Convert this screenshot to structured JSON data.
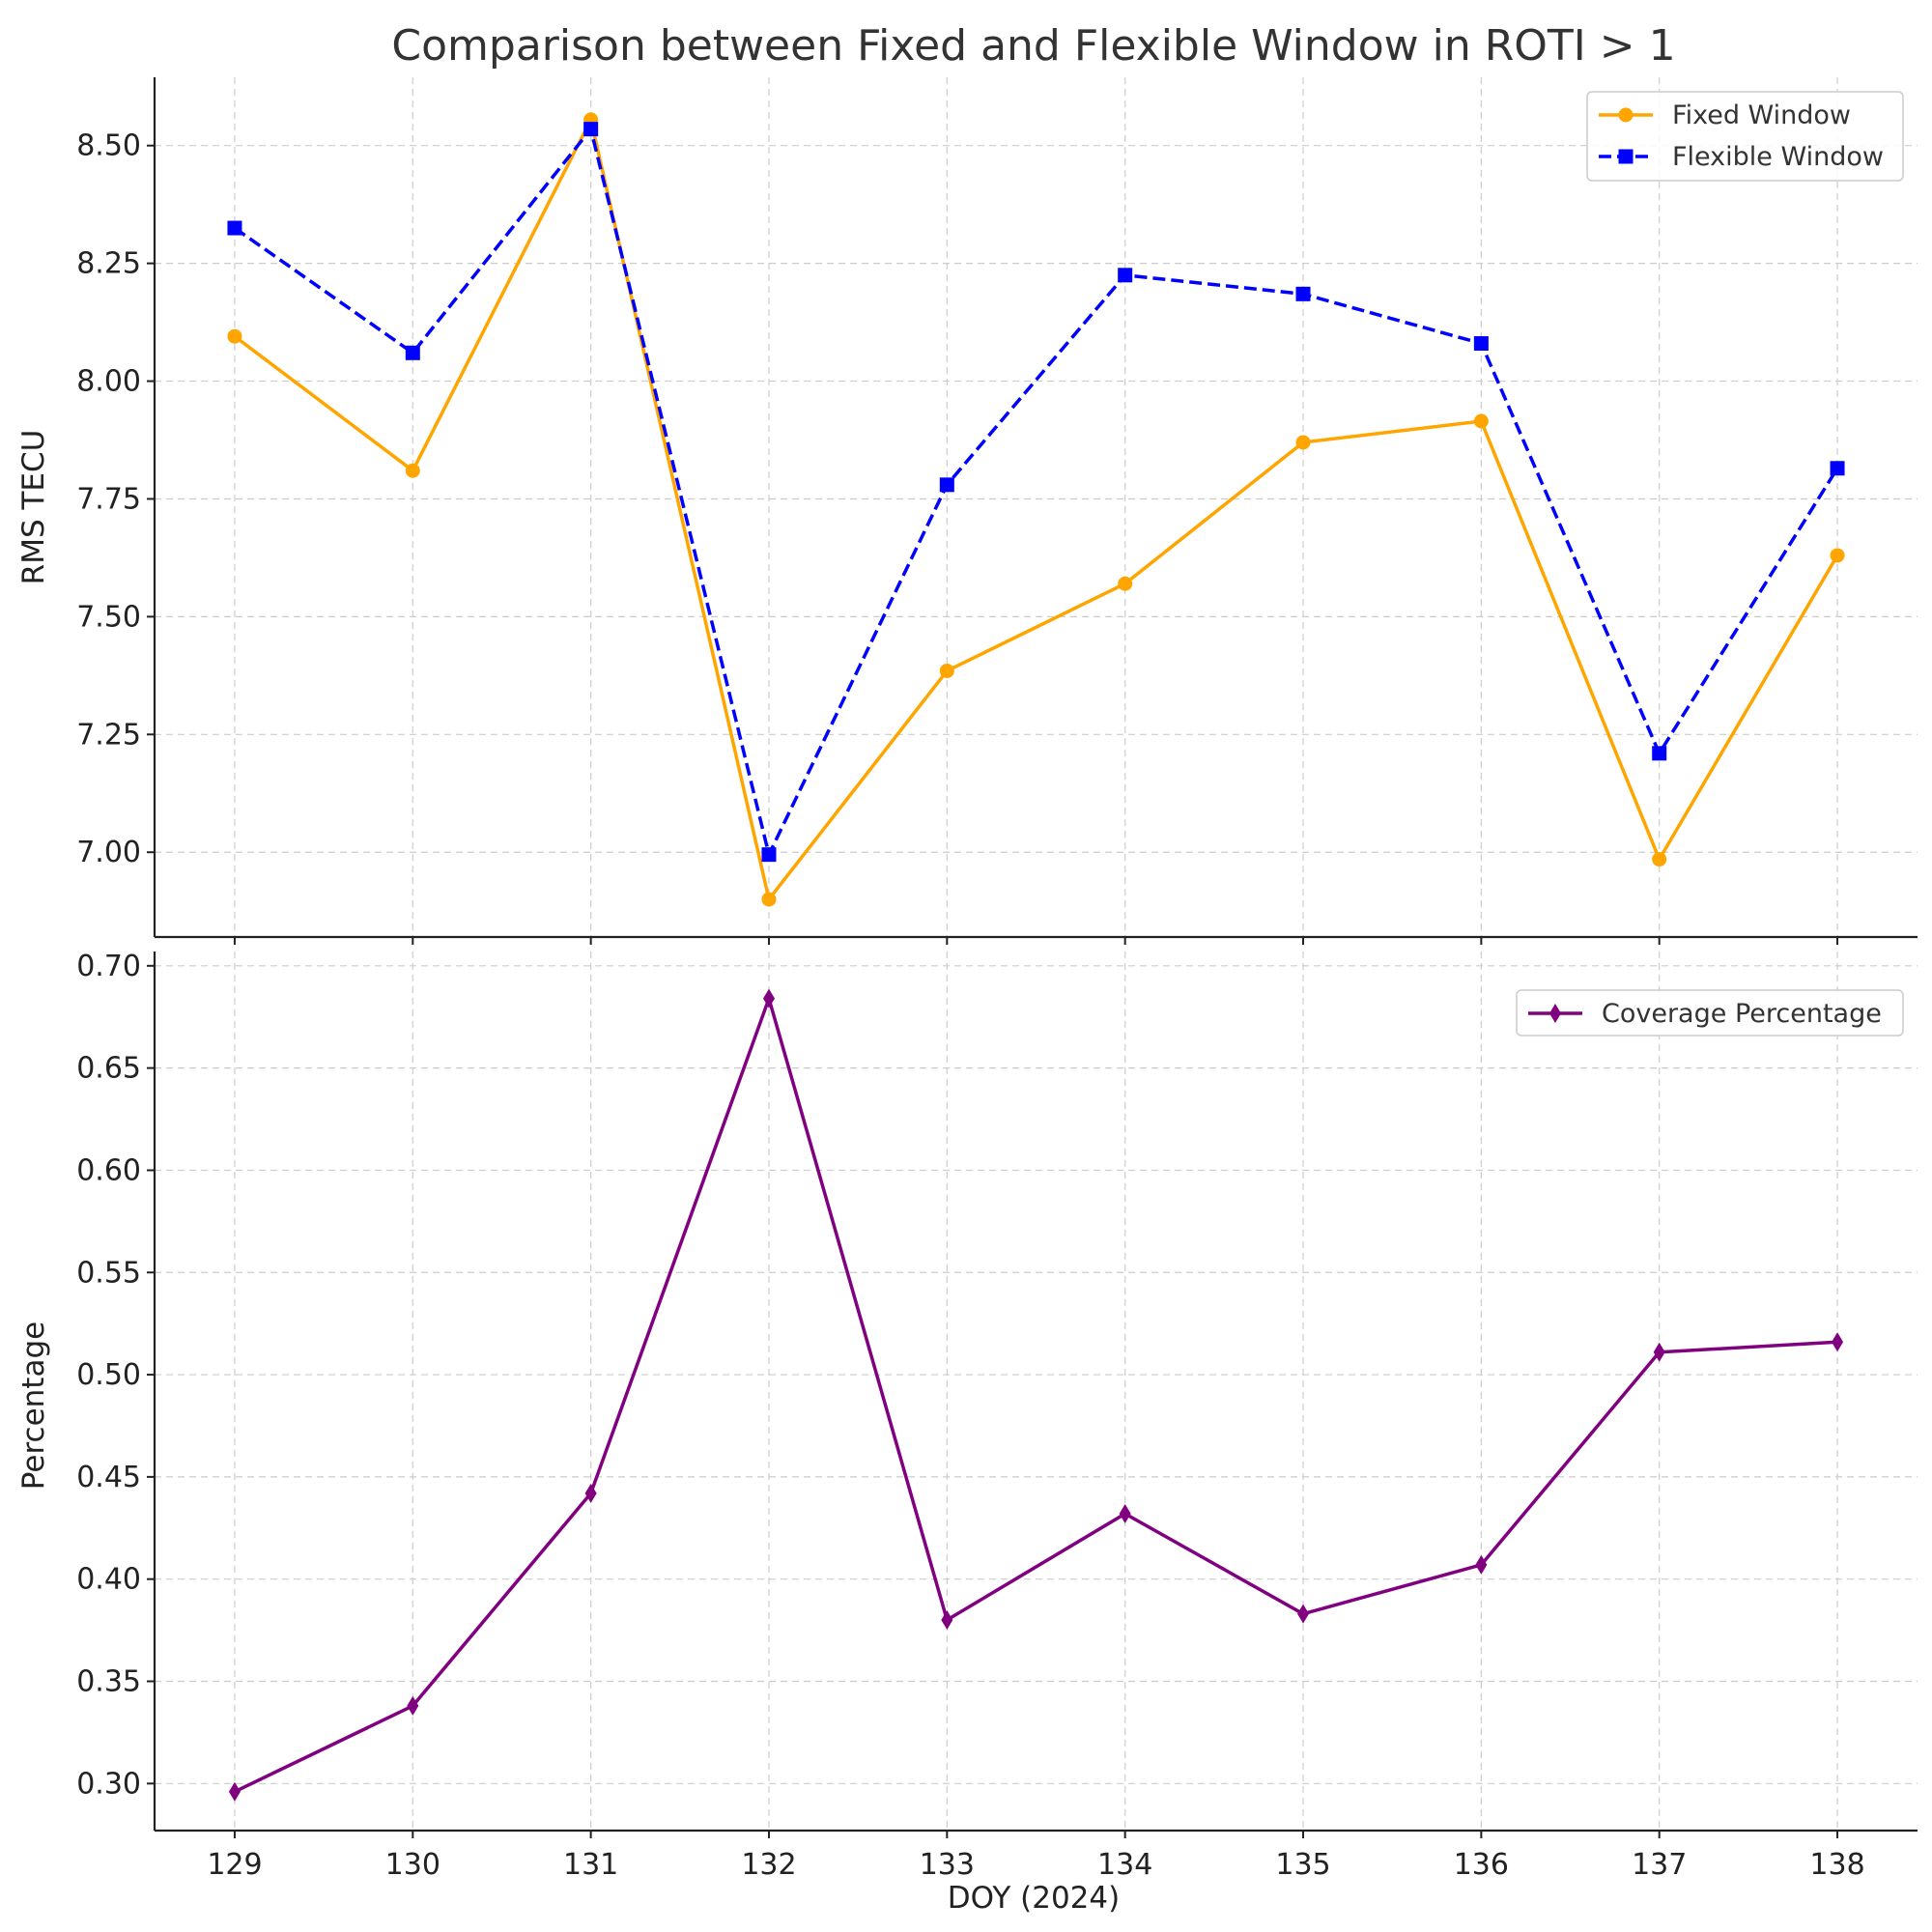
{
  "chart_data": {
    "title": "Comparison between Fixed and Flexible Window in ROTI > 1",
    "xlabel": "DOY (2024)",
    "x": [
      129,
      130,
      131,
      132,
      133,
      134,
      135,
      136,
      137,
      138
    ],
    "xlim": [
      128.55,
      138.45
    ],
    "panels": [
      {
        "type": "line",
        "ylabel": "RMS TECU",
        "ylim": [
          6.82,
          8.645
        ],
        "yticks": [
          7.0,
          7.25,
          7.5,
          7.75,
          8.0,
          8.25,
          8.5
        ],
        "ytick_labels": [
          "7.00",
          "7.25",
          "7.50",
          "7.75",
          "8.00",
          "8.25",
          "8.50"
        ],
        "grid": true,
        "legend_position": "top-right",
        "series": [
          {
            "name": "Fixed Window",
            "color": "#FFA500",
            "marker": "circle",
            "linestyle": "solid",
            "values": [
              8.095,
              7.81,
              8.555,
              6.9,
              7.385,
              7.57,
              7.87,
              7.915,
              6.985,
              7.63
            ]
          },
          {
            "name": "Flexible Window",
            "color": "#0000FF",
            "marker": "square",
            "linestyle": "dashed",
            "values": [
              8.325,
              8.06,
              8.535,
              6.995,
              7.78,
              8.225,
              8.185,
              8.08,
              7.21,
              7.815
            ]
          }
        ]
      },
      {
        "type": "line",
        "ylabel": "Percentage",
        "ylim": [
          0.277,
          0.707
        ],
        "yticks": [
          0.3,
          0.35,
          0.4,
          0.45,
          0.5,
          0.55,
          0.6,
          0.65,
          0.7
        ],
        "ytick_labels": [
          "0.30",
          "0.35",
          "0.40",
          "0.45",
          "0.50",
          "0.55",
          "0.60",
          "0.65",
          "0.70"
        ],
        "grid": true,
        "legend_position": "top-right",
        "series": [
          {
            "name": "Coverage Percentage",
            "color": "#800080",
            "marker": "diamond",
            "linestyle": "solid",
            "values": [
              0.296,
              0.338,
              0.442,
              0.684,
              0.38,
              0.432,
              0.383,
              0.407,
              0.511,
              0.516
            ]
          }
        ]
      }
    ]
  }
}
